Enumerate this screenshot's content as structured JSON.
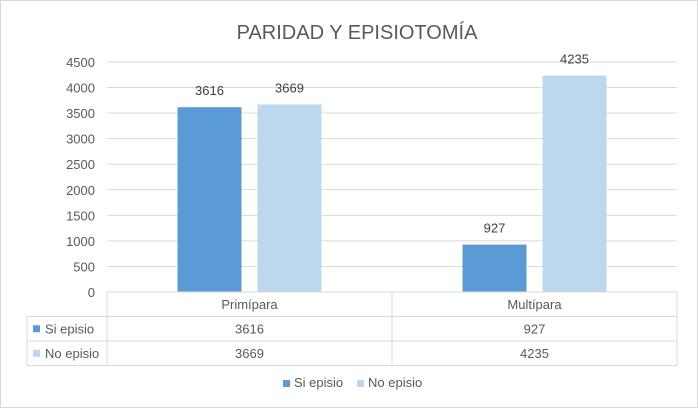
{
  "chart_data": {
    "type": "bar",
    "title": "PARIDAD Y EPISIOTOMÍA",
    "categories": [
      "Primípara",
      "Multípara"
    ],
    "series": [
      {
        "name": "Si episio",
        "values": [
          3616,
          927
        ],
        "color": "#5b9bd5"
      },
      {
        "name": "No episio",
        "values": [
          3669,
          4235
        ],
        "color": "#bdd7ee"
      }
    ],
    "ylim": [
      0,
      4500
    ],
    "yticks": [
      0,
      500,
      1000,
      1500,
      2000,
      2500,
      3000,
      3500,
      4000,
      4500
    ],
    "grid": true,
    "legend": "bottom",
    "data_table": true
  }
}
